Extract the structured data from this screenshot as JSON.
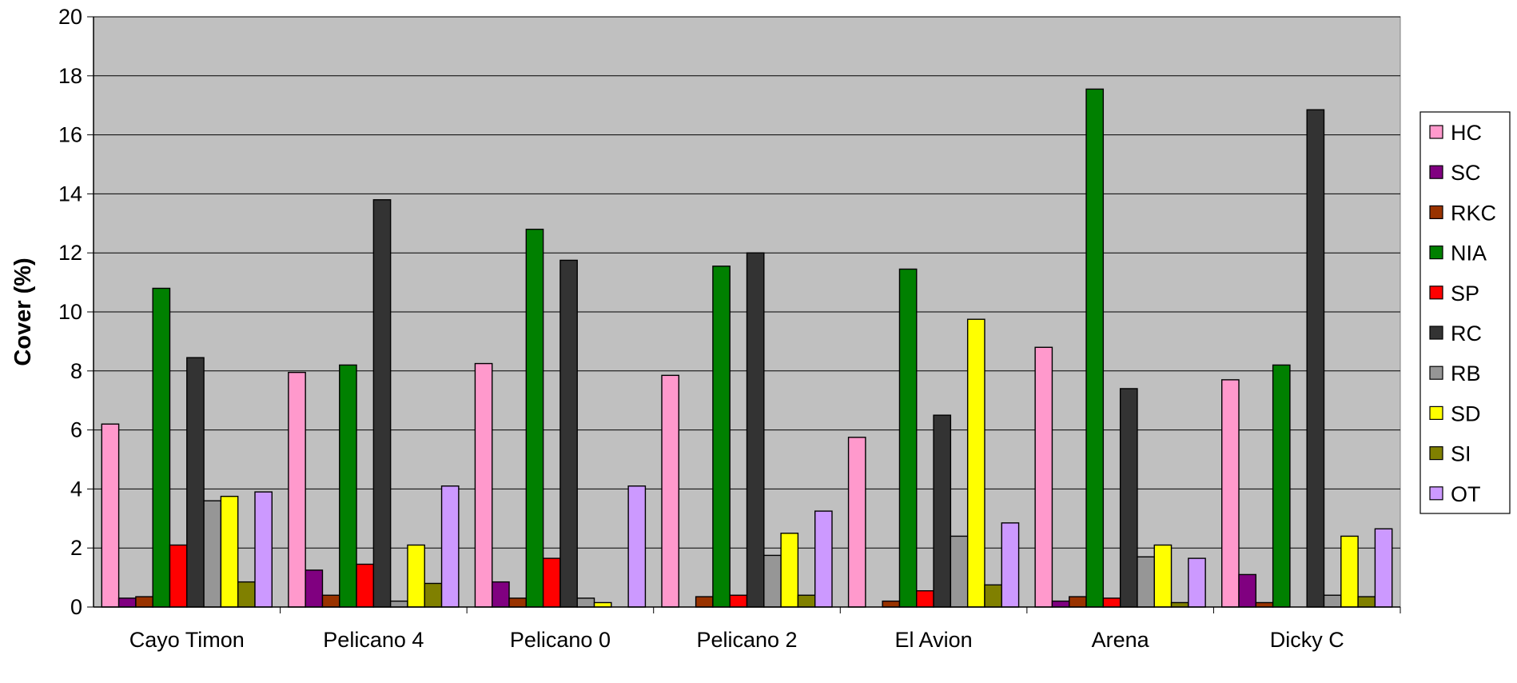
{
  "chart_data": {
    "type": "bar",
    "title": "",
    "xlabel": "",
    "ylabel": "Cover (%)",
    "ylim": [
      0,
      20
    ],
    "yticks": [
      0,
      2,
      4,
      6,
      8,
      10,
      12,
      14,
      16,
      18,
      20
    ],
    "grid": true,
    "legend_position": "right",
    "plot_background": "#c0c0c0",
    "categories": [
      "Cayo Timon",
      "Pelicano 4",
      "Pelicano 0",
      "Pelicano 2",
      "El Avion",
      "Arena",
      "Dicky C"
    ],
    "series": [
      {
        "name": "HC",
        "color": "#ff99cc",
        "values": [
          6.2,
          7.95,
          8.25,
          7.85,
          5.75,
          8.8,
          7.7
        ]
      },
      {
        "name": "SC",
        "color": "#800080",
        "values": [
          0.3,
          1.25,
          0.85,
          0.0,
          0.0,
          0.2,
          1.1
        ]
      },
      {
        "name": "RKC",
        "color": "#993300",
        "values": [
          0.35,
          0.4,
          0.3,
          0.35,
          0.2,
          0.35,
          0.15
        ]
      },
      {
        "name": "NIA",
        "color": "#008000",
        "values": [
          10.8,
          8.2,
          12.8,
          11.55,
          11.45,
          17.55,
          8.2
        ]
      },
      {
        "name": "SP",
        "color": "#ff0000",
        "values": [
          2.1,
          1.45,
          1.65,
          0.4,
          0.55,
          0.3,
          0.0
        ]
      },
      {
        "name": "RC",
        "color": "#333333",
        "values": [
          8.45,
          13.8,
          11.75,
          12.0,
          6.5,
          7.4,
          16.85
        ]
      },
      {
        "name": "RB",
        "color": "#969696",
        "values": [
          3.6,
          0.2,
          0.3,
          1.75,
          2.4,
          1.7,
          0.4
        ]
      },
      {
        "name": "SD",
        "color": "#ffff00",
        "values": [
          3.75,
          2.1,
          0.15,
          2.5,
          9.75,
          2.1,
          2.4
        ]
      },
      {
        "name": "SI",
        "color": "#808000",
        "values": [
          0.85,
          0.8,
          0.0,
          0.4,
          0.75,
          0.15,
          0.35
        ]
      },
      {
        "name": "OT",
        "color": "#cc99ff",
        "values": [
          3.9,
          4.1,
          4.1,
          3.25,
          2.85,
          1.65,
          2.65
        ]
      }
    ]
  }
}
